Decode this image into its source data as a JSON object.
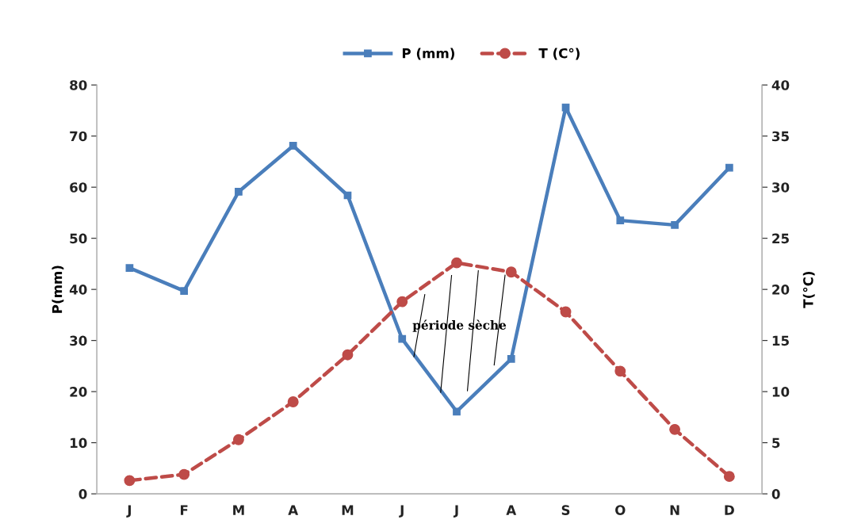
{
  "chart_data": {
    "type": "line",
    "categories": [
      "J",
      "F",
      "M",
      "A",
      "M",
      "J",
      "J",
      "A",
      "S",
      "O",
      "N",
      "D"
    ],
    "ylabel": "P(mm)",
    "y2label": "T(°C)",
    "series": [
      {
        "name": "P (mm)",
        "color": "#4a7ebb",
        "marker": "square",
        "line_style": "solid",
        "values": [
          44.2,
          39.7,
          59.1,
          68.1,
          58.4,
          30.3,
          16.1,
          26.4,
          75.6,
          53.5,
          52.6,
          63.8
        ]
      },
      {
        "name": "T (C°)",
        "color": "#be4b48",
        "marker": "circle",
        "line_style": "dashed",
        "axis": "y2",
        "values": [
          1.3,
          1.9,
          5.3,
          9.0,
          13.6,
          18.8,
          22.6,
          21.7,
          17.8,
          12.0,
          6.3,
          1.7
        ]
      }
    ],
    "ylim": [
      0,
      80
    ],
    "yticks": [
      0,
      10,
      20,
      30,
      40,
      50,
      60,
      70,
      80
    ],
    "y2lim": [
      0,
      40
    ],
    "y2ticks": [
      0,
      5,
      10,
      15,
      20,
      25,
      30,
      35,
      40
    ],
    "annotations": [
      "période sèche"
    ],
    "grid": false,
    "legend": "top"
  }
}
